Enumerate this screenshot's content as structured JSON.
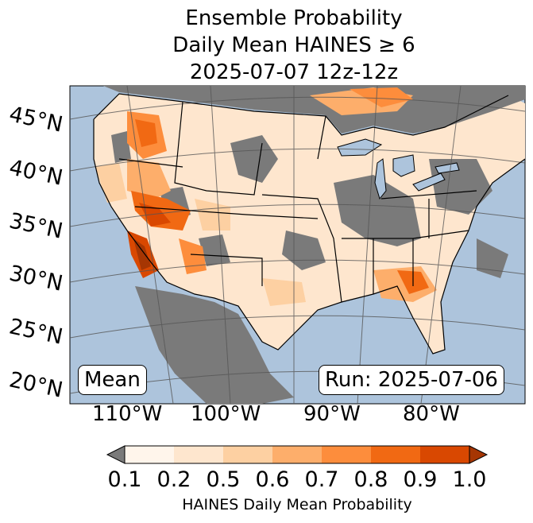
{
  "title": {
    "line1": "Ensemble Probability",
    "line2": "Daily Mean HAINES ≥ 6",
    "line3": "2025-07-07 12z-12z"
  },
  "map": {
    "region": "Contiguous United States",
    "lat_labels": [
      "45°N",
      "40°N",
      "35°N",
      "30°N",
      "25°N",
      "20°N"
    ],
    "lon_labels": [
      "110°W",
      "100°W",
      "90°W",
      "80°W"
    ],
    "mean_label": "Mean",
    "run_label": "Run: 2025-07-06",
    "colors": {
      "ocean": "#adc4dc",
      "no_data_gray": "#7a7a7a",
      "borders": "#000000",
      "gridlines": "#555555"
    }
  },
  "colorbar": {
    "ticks": [
      "0.1",
      "0.2",
      "0.5",
      "0.6",
      "0.7",
      "0.8",
      "0.9",
      "1.0"
    ],
    "label": "HAINES Daily Mean Probability",
    "colors": [
      "#fff5eb",
      "#fee6ce",
      "#fdd0a2",
      "#fdae6b",
      "#fd8d3c",
      "#f16913",
      "#d94801",
      "#a63603"
    ],
    "under_color": "#7a7a7a",
    "over_color": "#a63603"
  }
}
